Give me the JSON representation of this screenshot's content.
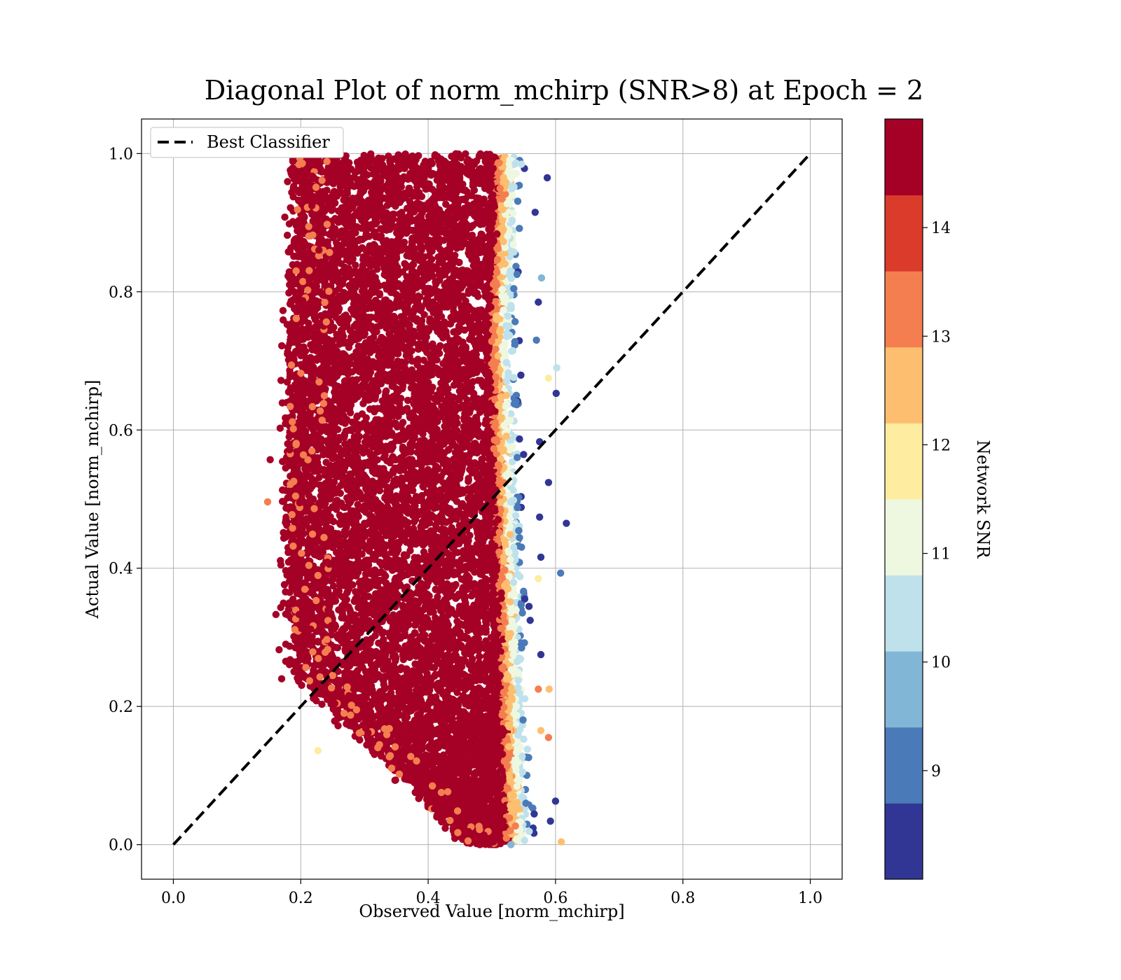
{
  "chart_data": {
    "type": "scatter",
    "title": "Diagonal Plot of norm_mchirp (SNR>8) at Epoch = 2",
    "xlabel": "Observed Value [norm_mchirp]",
    "ylabel": "Actual Value [norm_mchirp]",
    "xlim": [
      -0.05,
      1.05
    ],
    "ylim": [
      -0.05,
      1.05
    ],
    "x_ticks": [
      "0.0",
      "0.2",
      "0.4",
      "0.6",
      "0.8",
      "1.0"
    ],
    "y_ticks": [
      "0.0",
      "0.2",
      "0.4",
      "0.6",
      "0.8",
      "1.0"
    ],
    "grid": true,
    "legend": {
      "position": "top-left",
      "entries": [
        "Best Classifier"
      ]
    },
    "reference_line": {
      "name": "Best Classifier",
      "style": "dashed",
      "color": "#000000",
      "x": [
        0.0,
        1.0
      ],
      "y": [
        0.0,
        1.0
      ]
    },
    "colorbar": {
      "label": "Network SNR",
      "range": [
        8,
        15
      ],
      "ticks": [
        "9",
        "10",
        "11",
        "12",
        "13",
        "14"
      ],
      "levels": 10,
      "colors": [
        "#313695",
        "#4a7ab7",
        "#82b6d6",
        "#bfe1ec",
        "#eef7e0",
        "#feeca0",
        "#fdbf6f",
        "#f47e4f",
        "#db3b2b",
        "#a50026"
      ]
    },
    "point_cloud": {
      "description_x_range": [
        0.15,
        0.62
      ],
      "y_range": [
        0.0,
        1.0
      ],
      "dominant_snr": 15
    },
    "outlier_points": [
      {
        "x": 0.587,
        "y": 0.965,
        "snr": 8.2
      },
      {
        "x": 0.568,
        "y": 0.915,
        "snr": 8.2
      },
      {
        "x": 0.578,
        "y": 0.82,
        "snr": 9.8
      },
      {
        "x": 0.573,
        "y": 0.785,
        "snr": 8.7
      },
      {
        "x": 0.57,
        "y": 0.73,
        "snr": 9.2
      },
      {
        "x": 0.602,
        "y": 0.69,
        "snr": 10.5
      },
      {
        "x": 0.589,
        "y": 0.675,
        "snr": 11.8
      },
      {
        "x": 0.601,
        "y": 0.653,
        "snr": 8.2
      },
      {
        "x": 0.575,
        "y": 0.583,
        "snr": 8.2
      },
      {
        "x": 0.589,
        "y": 0.524,
        "snr": 8.2
      },
      {
        "x": 0.617,
        "y": 0.465,
        "snr": 8.7
      },
      {
        "x": 0.575,
        "y": 0.474,
        "snr": 8.7
      },
      {
        "x": 0.577,
        "y": 0.416,
        "snr": 8.7
      },
      {
        "x": 0.608,
        "y": 0.393,
        "snr": 9.2
      },
      {
        "x": 0.573,
        "y": 0.385,
        "snr": 11.8
      },
      {
        "x": 0.577,
        "y": 0.275,
        "snr": 8.7
      },
      {
        "x": 0.59,
        "y": 0.225,
        "snr": 12.3
      },
      {
        "x": 0.573,
        "y": 0.225,
        "snr": 13.3
      },
      {
        "x": 0.577,
        "y": 0.165,
        "snr": 12.3
      },
      {
        "x": 0.589,
        "y": 0.155,
        "snr": 13.3
      },
      {
        "x": 0.6,
        "y": 0.063,
        "snr": 8.7
      },
      {
        "x": 0.592,
        "y": 0.034,
        "snr": 8.7
      },
      {
        "x": 0.609,
        "y": 0.004,
        "snr": 12.6
      },
      {
        "x": 0.148,
        "y": 0.496,
        "snr": 13.3
      },
      {
        "x": 0.161,
        "y": 0.333,
        "snr": 14.3
      },
      {
        "x": 0.227,
        "y": 0.136,
        "snr": 11.8
      },
      {
        "x": 0.166,
        "y": 0.282,
        "snr": 15
      },
      {
        "x": 0.17,
        "y": 0.24,
        "snr": 14.3
      },
      {
        "x": 0.152,
        "y": 0.557,
        "snr": 15
      },
      {
        "x": 0.175,
        "y": 0.908,
        "snr": 15
      },
      {
        "x": 0.2,
        "y": 0.972,
        "snr": 14.3
      },
      {
        "x": 0.53,
        "y": 0.0,
        "snr": 9.8
      }
    ]
  }
}
